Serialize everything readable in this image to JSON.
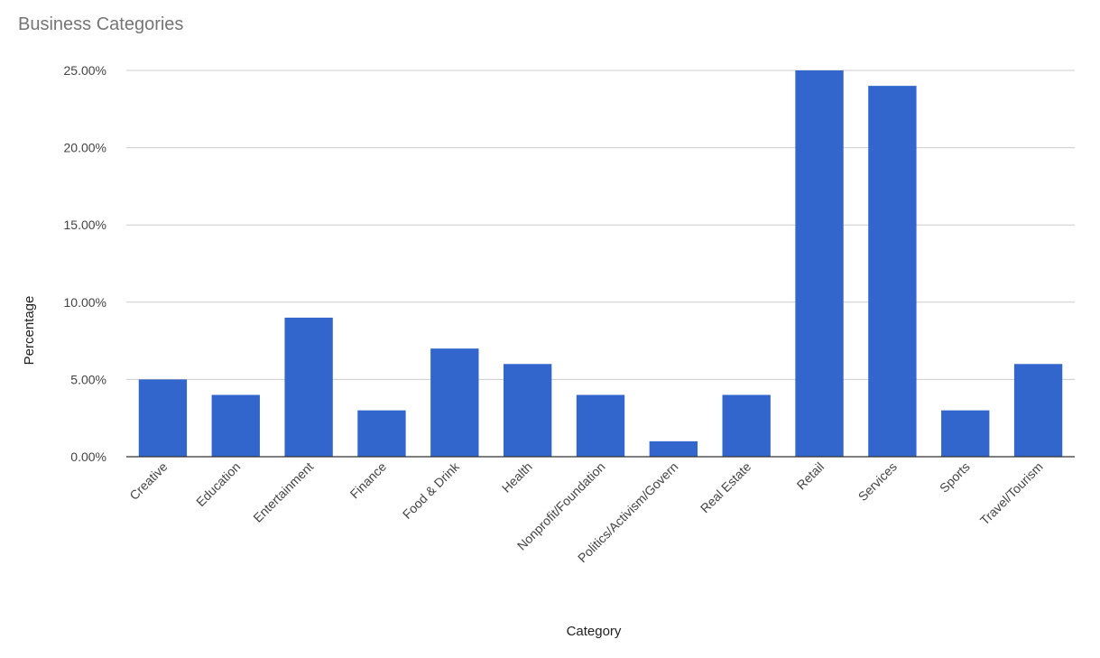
{
  "chart_data": {
    "type": "bar",
    "title": "Business Categories",
    "xlabel": "Category",
    "ylabel": "Percentage",
    "categories": [
      "Creative",
      "Education",
      "Entertainment",
      "Finance",
      "Food & Drink",
      "Health",
      "Nonprofit/Foundation",
      "Politics/Activism/Govern",
      "Real Estate",
      "Retail",
      "Services",
      "Sports",
      "Travel/Tourism"
    ],
    "values": [
      5,
      4,
      9,
      3,
      7,
      6,
      4,
      1,
      4,
      25,
      24,
      3,
      6
    ],
    "value_unit": "%",
    "yticks": [
      "0.00%",
      "5.00%",
      "10.00%",
      "15.00%",
      "20.00%",
      "25.00%"
    ],
    "ylim": [
      0,
      25
    ],
    "grid": true,
    "bar_color": "#3366cc"
  }
}
